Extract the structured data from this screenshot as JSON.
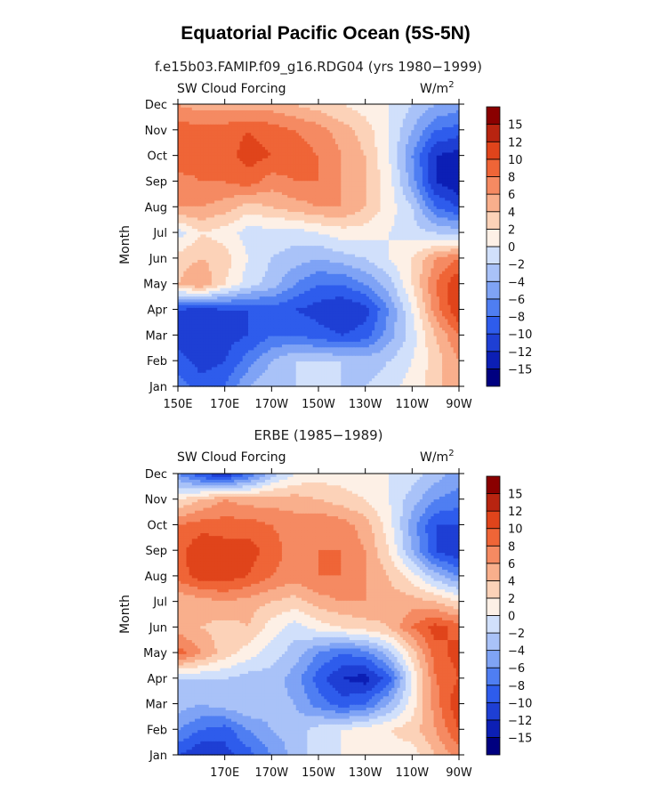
{
  "title": "Equatorial Pacific Ocean (5S-5N)",
  "colors": [
    "#000080",
    "#0c1fb5",
    "#1e3fd4",
    "#2e5cec",
    "#4f7ef2",
    "#7fa3f5",
    "#a9c2f8",
    "#d1e0fb",
    "#fdf0e6",
    "#fcd2b8",
    "#f9af8c",
    "#f58a62",
    "#ef6537",
    "#e0441b",
    "#b82410",
    "#8a0000"
  ],
  "chart_data": [
    {
      "type": "heatmap",
      "title": "f.e15b03.FAMIP.f09_g16.RDG04 (yrs 1980−1999)",
      "left_label": "SW Cloud Forcing",
      "right_label": "W/m",
      "right_label_sup": "2",
      "ylabel": "Month",
      "xlabel": "",
      "x": [
        150,
        160,
        170,
        180,
        190,
        200,
        210,
        220,
        230,
        240,
        250,
        260,
        270
      ],
      "xlim": [
        150,
        270
      ],
      "x_ticks": [
        150,
        170,
        190,
        210,
        230,
        250,
        270
      ],
      "x_tick_labels": [
        "150E",
        "170E",
        "170W",
        "150W",
        "130W",
        "110W",
        "90W"
      ],
      "y_tick_labels": [
        "Jan",
        "Feb",
        "Mar",
        "Apr",
        "May",
        "Jun",
        "Jul",
        "Aug",
        "Sep",
        "Oct",
        "Nov",
        "Dec"
      ],
      "ylim": [
        0,
        11
      ],
      "colorbar_levels": [
        "−15",
        "−12",
        "−10",
        "−8",
        "−6",
        "−4",
        "−2",
        "0",
        "2",
        "4",
        "6",
        "8",
        "10",
        "12",
        "15"
      ],
      "values": [
        [
          -7,
          -9,
          -8,
          -4,
          -2,
          -2,
          -2,
          -2,
          -2,
          -1,
          1,
          3,
          6
        ],
        [
          -9,
          -11,
          -10,
          -7,
          -4,
          -2,
          -2,
          -2,
          -3,
          -2,
          0,
          3,
          6
        ],
        [
          -11,
          -12,
          -11,
          -10,
          -8,
          -8,
          -9,
          -10,
          -9,
          -5,
          -1,
          4,
          8
        ],
        [
          -10,
          -11,
          -10,
          -10,
          -9,
          -10,
          -11,
          -12,
          -11,
          -6,
          0,
          7,
          12
        ],
        [
          4,
          6,
          2,
          -1,
          -3,
          -6,
          -8,
          -8,
          -6,
          -3,
          2,
          8,
          12
        ],
        [
          3,
          4,
          3,
          0,
          -2,
          -3,
          -4,
          -3,
          -2,
          0,
          2,
          6,
          8
        ],
        [
          -1,
          2,
          1,
          -1,
          -1,
          -1,
          0,
          1,
          1,
          0,
          -1,
          -2,
          -3
        ],
        [
          6,
          6,
          5,
          3,
          4,
          5,
          6,
          6,
          4,
          1,
          -2,
          -8,
          -10
        ],
        [
          7,
          8,
          8,
          9,
          7,
          8,
          8,
          6,
          4,
          1,
          -5,
          -12,
          -14
        ],
        [
          10,
          9,
          9,
          11,
          10,
          9,
          8,
          6,
          4,
          0,
          -6,
          -12,
          -13
        ],
        [
          9,
          9,
          9,
          10,
          9,
          8,
          7,
          5,
          3,
          0,
          -4,
          -8,
          -9
        ],
        [
          6,
          5,
          5,
          5,
          5,
          4,
          3,
          2,
          1,
          0,
          -2,
          -4,
          -5
        ]
      ]
    },
    {
      "type": "heatmap",
      "title": "ERBE (1985−1989)",
      "left_label": "SW Cloud Forcing",
      "right_label": "W/m",
      "right_label_sup": "2",
      "ylabel": "Month",
      "xlabel": "",
      "x": [
        150,
        160,
        170,
        180,
        190,
        200,
        210,
        220,
        230,
        240,
        250,
        260,
        270
      ],
      "xlim": [
        150,
        270
      ],
      "x_ticks": [
        170,
        190,
        210,
        230,
        250,
        270
      ],
      "x_tick_labels": [
        "170E",
        "170W",
        "150W",
        "130W",
        "110W",
        "90W"
      ],
      "y_tick_labels": [
        "Jan",
        "Feb",
        "Mar",
        "Apr",
        "May",
        "Jun",
        "Jul",
        "Aug",
        "Sep",
        "Oct",
        "Nov",
        "Dec"
      ],
      "ylim": [
        0,
        11
      ],
      "colorbar_levels": [
        "−15",
        "−12",
        "−10",
        "−8",
        "−6",
        "−4",
        "−2",
        "0",
        "2",
        "4",
        "6",
        "8",
        "10",
        "12",
        "15"
      ],
      "values": [
        [
          -10,
          -12,
          -11,
          -9,
          -6,
          -3,
          -1,
          0,
          0,
          1,
          1,
          4,
          7
        ],
        [
          -6,
          -8,
          -9,
          -6,
          -4,
          -3,
          -1,
          0,
          1,
          2,
          3,
          6,
          10
        ],
        [
          -3,
          -4,
          -3,
          -2,
          -3,
          -4,
          -7,
          -9,
          -8,
          -4,
          1,
          7,
          12
        ],
        [
          -2,
          -2,
          -2,
          -3,
          -3,
          -5,
          -9,
          -12,
          -13,
          -9,
          0,
          8,
          10
        ],
        [
          9,
          6,
          3,
          1,
          -1,
          -3,
          -6,
          -8,
          -7,
          -3,
          3,
          9,
          11
        ],
        [
          5,
          4,
          3,
          4,
          1,
          -1,
          1,
          2,
          3,
          4,
          8,
          11,
          9
        ],
        [
          4,
          5,
          6,
          5,
          4,
          3,
          5,
          6,
          6,
          5,
          5,
          4,
          2
        ],
        [
          9,
          11,
          11,
          10,
          8,
          7,
          8,
          8,
          6,
          4,
          1,
          -3,
          -6
        ],
        [
          9,
          12,
          11,
          11,
          9,
          7,
          8,
          8,
          6,
          2,
          -4,
          -10,
          -12
        ],
        [
          8,
          9,
          9,
          9,
          8,
          7,
          8,
          7,
          5,
          1,
          -5,
          -10,
          -10
        ],
        [
          2,
          4,
          6,
          5,
          5,
          5,
          4,
          3,
          2,
          0,
          -3,
          -6,
          -7
        ],
        [
          -6,
          -10,
          -12,
          -8,
          -3,
          0,
          1,
          1,
          0,
          0,
          -1,
          -3,
          -5
        ]
      ]
    }
  ]
}
